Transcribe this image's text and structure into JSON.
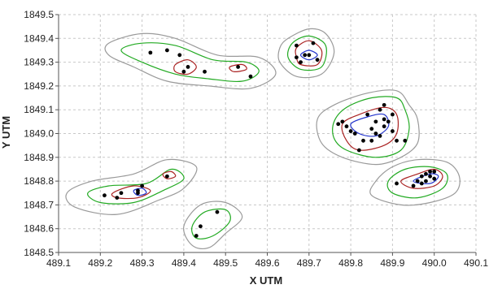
{
  "chart_data": {
    "type": "scatter",
    "xlabel": "X UTM",
    "ylabel": "Y UTM",
    "xlim": [
      489.1,
      490.1
    ],
    "ylim": [
      1848.5,
      1849.5
    ],
    "x_ticks": [
      "489.1",
      "489.2",
      "489.3",
      "489.4",
      "489.5",
      "489.6",
      "489.7",
      "489.8",
      "489.9",
      "490.0",
      "490.1"
    ],
    "y_ticks": [
      "1848.5",
      "1848.6",
      "1848.7",
      "1848.8",
      "1848.9",
      "1849.0",
      "1849.1",
      "1849.2",
      "1849.3",
      "1849.4",
      "1849.5"
    ],
    "grid": true,
    "colors": {
      "outer": "#9a9a9a",
      "middle": "#22aa22",
      "inner": "#aa2222",
      "core": "#2233cc",
      "point": "#000000",
      "grid": "#c8c8c8",
      "axis": "#555555"
    },
    "points": [
      [
        489.32,
        1849.34
      ],
      [
        489.36,
        1849.35
      ],
      [
        489.39,
        1849.33
      ],
      [
        489.41,
        1849.28
      ],
      [
        489.4,
        1849.26
      ],
      [
        489.45,
        1849.26
      ],
      [
        489.53,
        1849.28
      ],
      [
        489.56,
        1849.24
      ],
      [
        489.67,
        1849.37
      ],
      [
        489.7,
        1849.33
      ],
      [
        489.71,
        1849.38
      ],
      [
        489.67,
        1849.32
      ],
      [
        489.69,
        1849.33
      ],
      [
        489.68,
        1849.3
      ],
      [
        489.72,
        1849.31
      ],
      [
        489.77,
        1849.04
      ],
      [
        489.78,
        1849.05
      ],
      [
        489.79,
        1849.03
      ],
      [
        489.8,
        1849.01
      ],
      [
        489.81,
        1849.0
      ],
      [
        489.83,
        1848.97
      ],
      [
        489.85,
        1848.97
      ],
      [
        489.85,
        1849.02
      ],
      [
        489.86,
        1849.05
      ],
      [
        489.87,
        1849.1
      ],
      [
        489.88,
        1849.12
      ],
      [
        489.88,
        1849.06
      ],
      [
        489.86,
        1849.0
      ],
      [
        489.87,
        1848.99
      ],
      [
        489.88,
        1849.03
      ],
      [
        489.89,
        1849.05
      ],
      [
        489.9,
        1849.01
      ],
      [
        489.91,
        1848.97
      ],
      [
        489.9,
        1849.08
      ],
      [
        489.84,
        1849.08
      ],
      [
        489.82,
        1848.93
      ],
      [
        489.93,
        1848.97
      ],
      [
        489.91,
        1848.79
      ],
      [
        489.95,
        1848.78
      ],
      [
        489.96,
        1848.8
      ],
      [
        489.97,
        1848.82
      ],
      [
        489.98,
        1848.83
      ],
      [
        489.99,
        1848.84
      ],
      [
        490.0,
        1848.84
      ],
      [
        489.99,
        1848.82
      ],
      [
        490.0,
        1848.81
      ],
      [
        489.98,
        1848.8
      ],
      [
        489.97,
        1848.79
      ],
      [
        489.21,
        1848.74
      ],
      [
        489.24,
        1848.73
      ],
      [
        489.25,
        1848.75
      ],
      [
        489.29,
        1848.76
      ],
      [
        489.29,
        1848.75
      ],
      [
        489.3,
        1848.78
      ],
      [
        489.36,
        1848.82
      ],
      [
        489.48,
        1848.67
      ],
      [
        489.44,
        1848.61
      ],
      [
        489.43,
        1848.57
      ]
    ],
    "contours": [
      {
        "level": "outer",
        "paths": [
          [
            [
              489.22,
              1849.38
            ],
            [
              489.3,
              1849.42
            ],
            [
              489.38,
              1849.4
            ],
            [
              489.48,
              1849.33
            ],
            [
              489.58,
              1849.32
            ],
            [
              489.62,
              1849.25
            ],
            [
              489.56,
              1849.19
            ],
            [
              489.46,
              1849.2
            ],
            [
              489.36,
              1849.22
            ],
            [
              489.28,
              1849.28
            ],
            [
              489.22,
              1849.33
            ]
          ],
          [
            [
              489.65,
              1849.4
            ],
            [
              489.7,
              1849.44
            ],
            [
              489.74,
              1849.42
            ],
            [
              489.76,
              1849.34
            ],
            [
              489.73,
              1849.25
            ],
            [
              489.67,
              1849.24
            ],
            [
              489.63,
              1849.3
            ],
            [
              489.63,
              1849.36
            ]
          ],
          [
            [
              489.72,
              1849.06
            ],
            [
              489.76,
              1849.12
            ],
            [
              489.84,
              1849.17
            ],
            [
              489.91,
              1849.18
            ],
            [
              489.94,
              1849.12
            ],
            [
              489.96,
              1849.06
            ],
            [
              489.96,
              1848.96
            ],
            [
              489.92,
              1848.9
            ],
            [
              489.86,
              1848.87
            ],
            [
              489.78,
              1848.9
            ],
            [
              489.73,
              1848.96
            ]
          ],
          [
            [
              489.86,
              1848.8
            ],
            [
              489.9,
              1848.86
            ],
            [
              489.96,
              1848.89
            ],
            [
              490.03,
              1848.88
            ],
            [
              490.06,
              1848.82
            ],
            [
              490.05,
              1848.75
            ],
            [
              489.99,
              1848.71
            ],
            [
              489.92,
              1848.7
            ],
            [
              489.85,
              1848.74
            ]
          ],
          [
            [
              489.12,
              1848.75
            ],
            [
              489.18,
              1848.8
            ],
            [
              489.28,
              1848.83
            ],
            [
              489.36,
              1848.89
            ],
            [
              489.43,
              1848.86
            ],
            [
              489.4,
              1848.77
            ],
            [
              489.34,
              1848.72
            ],
            [
              489.24,
              1848.66
            ],
            [
              489.14,
              1848.69
            ]
          ],
          [
            [
              489.4,
              1848.61
            ],
            [
              489.44,
              1848.7
            ],
            [
              489.5,
              1848.71
            ],
            [
              489.54,
              1848.65
            ],
            [
              489.5,
              1848.58
            ],
            [
              489.46,
              1848.52
            ],
            [
              489.42,
              1848.53
            ]
          ]
        ]
      },
      {
        "level": "middle",
        "paths": [
          [
            [
              489.25,
              1849.35
            ],
            [
              489.3,
              1849.38
            ],
            [
              489.38,
              1849.37
            ],
            [
              489.47,
              1849.31
            ],
            [
              489.55,
              1849.3
            ],
            [
              489.58,
              1849.26
            ],
            [
              489.54,
              1849.22
            ],
            [
              489.46,
              1849.23
            ],
            [
              489.38,
              1849.25
            ],
            [
              489.3,
              1849.3
            ]
          ],
          [
            [
              489.66,
              1849.38
            ],
            [
              489.7,
              1849.41
            ],
            [
              489.74,
              1849.37
            ],
            [
              489.73,
              1849.28
            ],
            [
              489.68,
              1849.27
            ],
            [
              489.65,
              1849.32
            ]
          ],
          [
            [
              489.76,
              1849.05
            ],
            [
              489.79,
              1849.11
            ],
            [
              489.85,
              1849.15
            ],
            [
              489.91,
              1849.15
            ],
            [
              489.93,
              1849.1
            ],
            [
              489.94,
              1849.02
            ],
            [
              489.92,
              1848.93
            ],
            [
              489.86,
              1848.9
            ],
            [
              489.79,
              1848.93
            ],
            [
              489.76,
              1848.98
            ]
          ],
          [
            [
              489.89,
              1848.8
            ],
            [
              489.93,
              1848.85
            ],
            [
              489.99,
              1848.86
            ],
            [
              490.03,
              1848.83
            ],
            [
              490.02,
              1848.77
            ],
            [
              489.96,
              1848.73
            ],
            [
              489.9,
              1848.75
            ]
          ],
          [
            [
              489.17,
              1848.75
            ],
            [
              489.22,
              1848.78
            ],
            [
              489.31,
              1848.79
            ],
            [
              489.37,
              1848.85
            ],
            [
              489.4,
              1848.81
            ],
            [
              489.35,
              1848.76
            ],
            [
              489.28,
              1848.71
            ],
            [
              489.2,
              1848.71
            ]
          ],
          [
            [
              489.42,
              1848.61
            ],
            [
              489.45,
              1848.67
            ],
            [
              489.5,
              1848.68
            ],
            [
              489.51,
              1848.63
            ],
            [
              489.47,
              1848.57
            ],
            [
              489.43,
              1848.56
            ]
          ]
        ]
      },
      {
        "level": "inner",
        "paths": [
          [
            [
              489.38,
              1849.29
            ],
            [
              489.41,
              1849.31
            ],
            [
              489.43,
              1849.28
            ],
            [
              489.41,
              1849.25
            ],
            [
              489.38,
              1849.26
            ]
          ],
          [
            [
              489.51,
              1849.28
            ],
            [
              489.54,
              1849.29
            ],
            [
              489.55,
              1849.27
            ],
            [
              489.52,
              1849.26
            ]
          ],
          [
            [
              489.67,
              1849.36
            ],
            [
              489.7,
              1849.39
            ],
            [
              489.73,
              1849.35
            ],
            [
              489.72,
              1849.29
            ],
            [
              489.68,
              1849.29
            ],
            [
              489.67,
              1849.32
            ]
          ],
          [
            [
              489.78,
              1849.04
            ],
            [
              489.82,
              1849.08
            ],
            [
              489.88,
              1849.11
            ],
            [
              489.91,
              1849.08
            ],
            [
              489.91,
              1849.0
            ],
            [
              489.88,
              1848.95
            ],
            [
              489.82,
              1848.93
            ],
            [
              489.79,
              1848.97
            ]
          ],
          [
            [
              489.92,
              1848.8
            ],
            [
              489.96,
              1848.83
            ],
            [
              490.0,
              1848.85
            ],
            [
              490.02,
              1848.82
            ],
            [
              490.0,
              1848.78
            ],
            [
              489.95,
              1848.77
            ]
          ],
          [
            [
              489.23,
              1848.75
            ],
            [
              489.28,
              1848.78
            ],
            [
              489.32,
              1848.76
            ],
            [
              489.29,
              1848.73
            ],
            [
              489.24,
              1848.73
            ]
          ],
          [
            [
              489.35,
              1848.83
            ],
            [
              489.37,
              1848.84
            ],
            [
              489.38,
              1848.82
            ],
            [
              489.36,
              1848.81
            ]
          ]
        ]
      },
      {
        "level": "core",
        "paths": [
          [
            [
              489.68,
              1849.33
            ],
            [
              489.7,
              1849.35
            ],
            [
              489.72,
              1849.33
            ],
            [
              489.7,
              1849.31
            ]
          ],
          [
            [
              489.8,
              1849.04
            ],
            [
              489.84,
              1849.07
            ],
            [
              489.88,
              1849.08
            ],
            [
              489.89,
              1849.03
            ],
            [
              489.86,
              1848.99
            ],
            [
              489.82,
              1849.0
            ]
          ],
          [
            [
              489.95,
              1848.8
            ],
            [
              489.99,
              1848.83
            ],
            [
              490.01,
              1848.82
            ],
            [
              489.99,
              1848.79
            ]
          ],
          [
            [
              489.28,
              1848.76
            ],
            [
              489.3,
              1848.77
            ],
            [
              489.31,
              1848.75
            ],
            [
              489.29,
              1848.74
            ]
          ]
        ]
      }
    ]
  }
}
